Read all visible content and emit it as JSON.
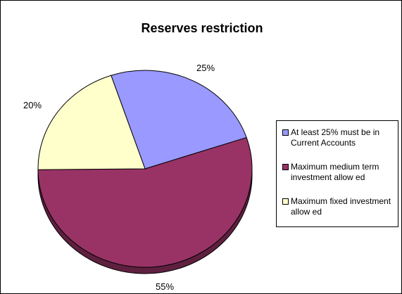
{
  "chart_data": {
    "type": "pie",
    "title": "Reserves restriction",
    "slices": [
      {
        "label": "At least 25% must be in Current Accounts",
        "value": 25,
        "data_label": "25%",
        "color": "#9999ff"
      },
      {
        "label": "Maximum medium term investment allow ed",
        "value": 55,
        "data_label": "55%",
        "color": "#993366"
      },
      {
        "label": "Maximum fixed investment allow ed",
        "value": 20,
        "data_label": "20%",
        "color": "#ffffcc"
      }
    ],
    "style": "3d",
    "legend_position": "right",
    "background": "#ffffff"
  }
}
